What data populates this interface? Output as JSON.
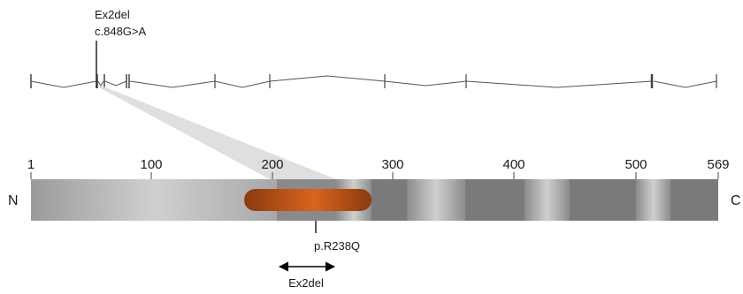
{
  "gene": {
    "mutation_labels": [
      "Ex2del",
      "c.848G>A"
    ]
  },
  "protein": {
    "n_terminus": "N",
    "c_terminus": "C",
    "axis_ticks": [
      "1",
      "100",
      "200",
      "300",
      "400",
      "500",
      "569"
    ],
    "point_mutation_label": "p.R238Q",
    "deletion_label": "Ex2del"
  },
  "colors": {
    "exon_line": "#555555",
    "bar_light": "#c8c8c8",
    "bar_dark": "#7a7a7a",
    "domain_highlight": "#c9581a",
    "zoom_wedge": "#d9d9d9"
  }
}
